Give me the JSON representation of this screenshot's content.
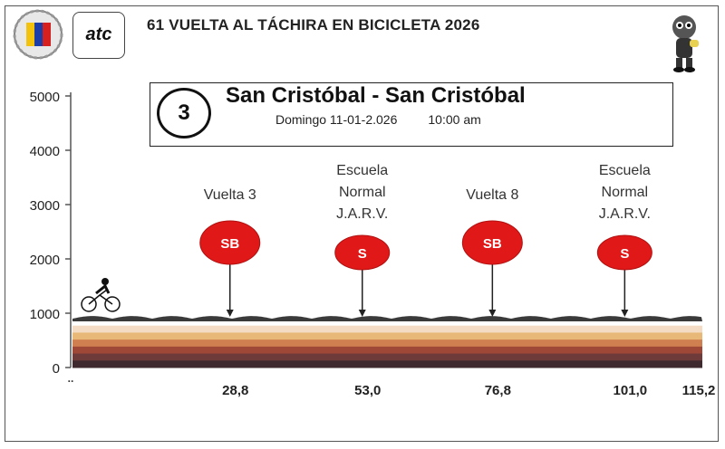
{
  "header": {
    "title": "61 VUELTA AL TÁCHIRA EN BICICLETA 2026",
    "logo_text": "atc"
  },
  "stage": {
    "number": "3",
    "route": "San Cristóbal - San Cristóbal",
    "date": "Domingo 11-01-2.026",
    "time": "10:00 am"
  },
  "chart_data": {
    "type": "area",
    "title": "61 VUELTA AL TÁCHIRA EN BICICLETA 2026",
    "xlabel": "",
    "ylabel": "",
    "ylim": [
      0,
      5000
    ],
    "y_ticks": [
      "0",
      "1000",
      "2000",
      "3000",
      "4000",
      "5000"
    ],
    "x_start_label": "..",
    "x_range_km": [
      0,
      115.2
    ],
    "x_ticks": [
      {
        "km": 28.8,
        "label": "28,8"
      },
      {
        "km": 53.0,
        "label": "53,0"
      },
      {
        "km": 76.8,
        "label": "76,8"
      },
      {
        "km": 101.0,
        "label": "101,0"
      },
      {
        "km": 115.2,
        "label": "115,2"
      }
    ],
    "profile": {
      "base_altitude_m": 900,
      "wave_amplitude_m": 80,
      "band_colors": [
        "#ffffff",
        "#f4dcc4",
        "#e8b878",
        "#d08050",
        "#a04838",
        "#6e3a3a",
        "#3e2a2e"
      ]
    },
    "markers": [
      {
        "km": 28.8,
        "type": "SB",
        "label_lines": [
          "Vuelta 3"
        ],
        "size": "large"
      },
      {
        "km": 53.0,
        "type": "S",
        "label_lines": [
          "Escuela",
          "Normal",
          "J.A.R.V."
        ],
        "size": "small"
      },
      {
        "km": 76.8,
        "type": "SB",
        "label_lines": [
          "Vuelta 8"
        ],
        "size": "large"
      },
      {
        "km": 101.0,
        "type": "S",
        "label_lines": [
          "Escuela",
          "Normal",
          "J.A.R.V."
        ],
        "size": "small"
      }
    ],
    "marker_color": "#e01818",
    "grid": false
  }
}
